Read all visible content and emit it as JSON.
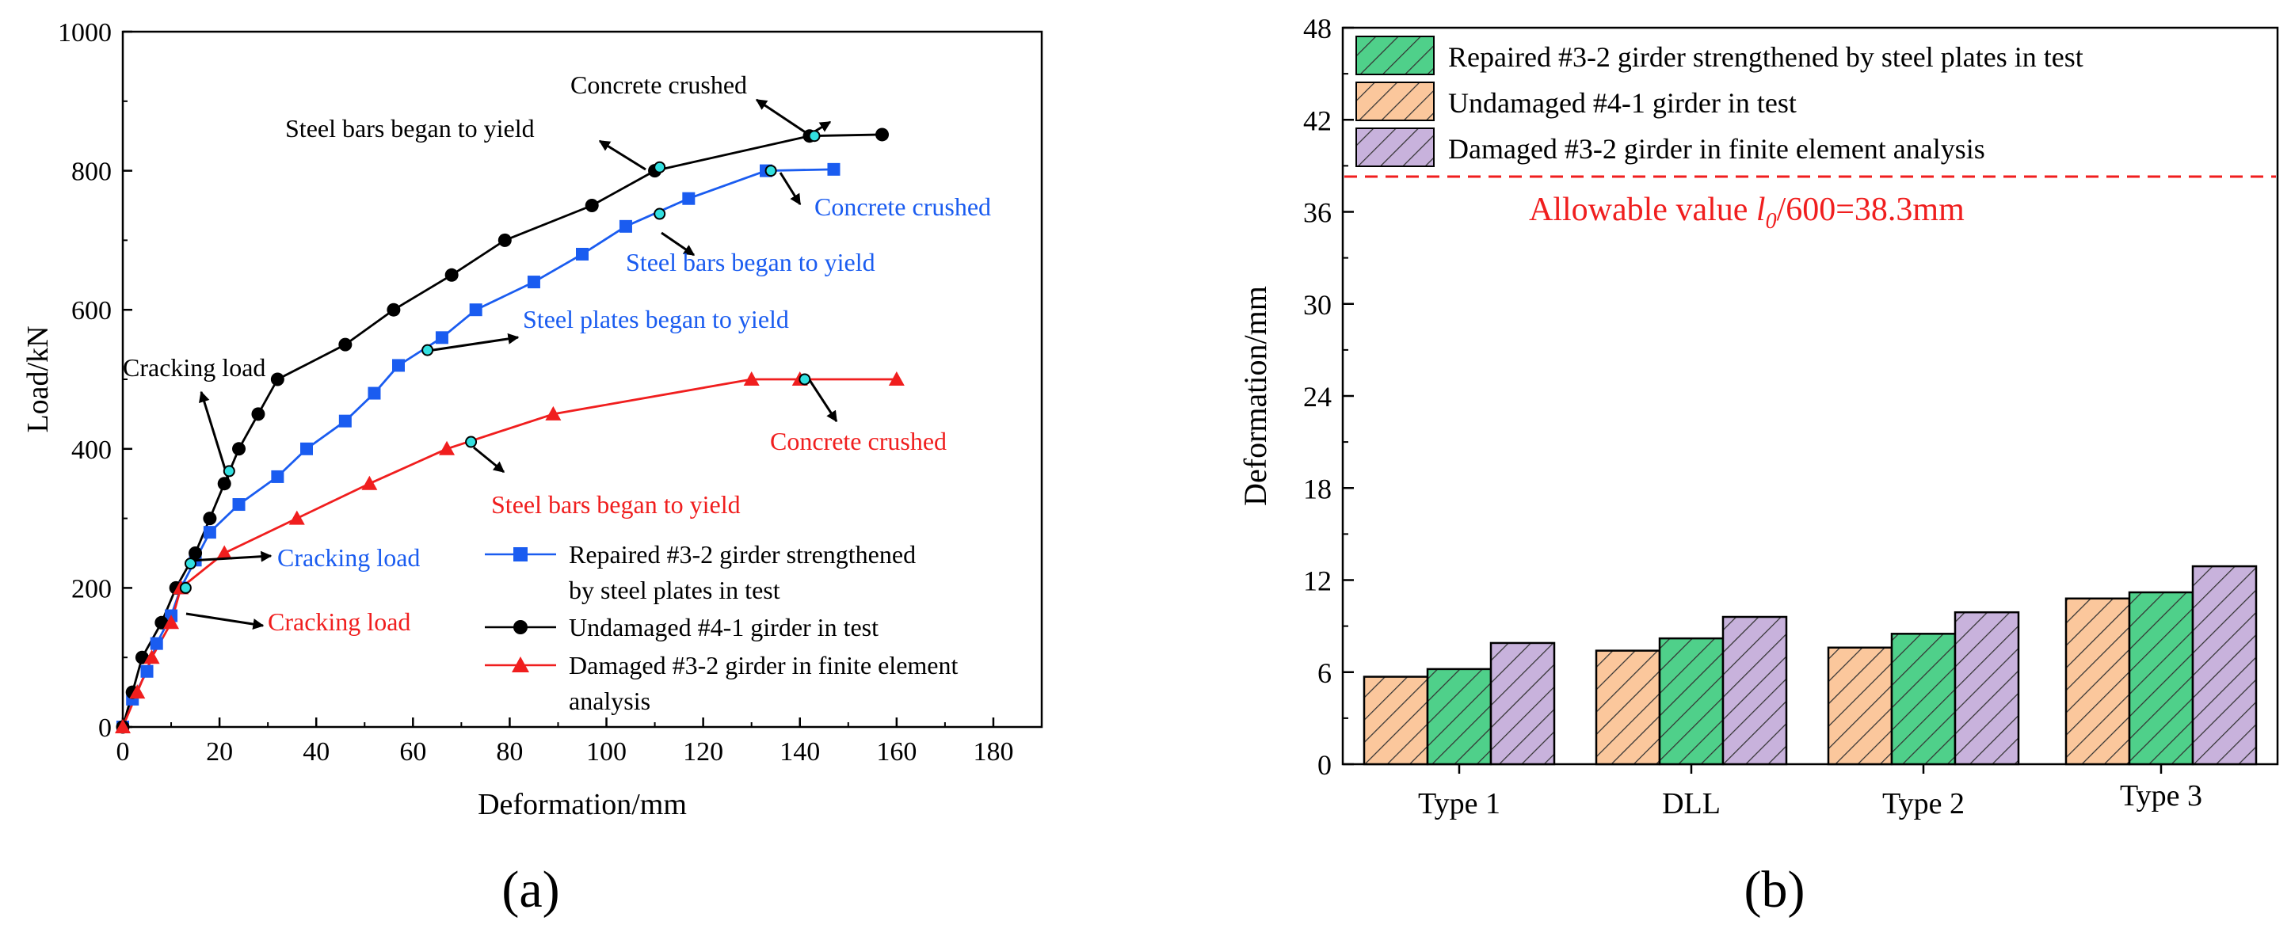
{
  "colors": {
    "black": "#000000",
    "blue": "#1a5cf0",
    "red": "#f01e1e",
    "cyan": "#33e0e0",
    "bar_orange": "#fbc79c",
    "bar_green": "#4fd08a",
    "bar_purple": "#c8b2dc"
  },
  "chart_data": [
    {
      "type": "line",
      "panel_label": "(a)",
      "title": "",
      "xlabel": "Deformation/mm",
      "ylabel": "Load/kN",
      "xlim": [
        0,
        190
      ],
      "ylim": [
        0,
        1000
      ],
      "xticks": [
        "0",
        "20",
        "40",
        "60",
        "80",
        "100",
        "120",
        "140",
        "160",
        "180"
      ],
      "yticks": [
        "0",
        "200",
        "400",
        "600",
        "800",
        "1000"
      ],
      "series": [
        {
          "name": "Repaired #3-2 girder strengthened by steel plates in test",
          "legend_lines": [
            "Repaired #3-2 girder strengthened",
            "by steel plates in test"
          ],
          "color": "blue",
          "marker": "square",
          "x": [
            0,
            2,
            5,
            7,
            10,
            12,
            15,
            18,
            24,
            32,
            38,
            46,
            52,
            57,
            66,
            73,
            85,
            95,
            104,
            117,
            133,
            147
          ],
          "y": [
            0,
            40,
            80,
            120,
            160,
            200,
            240,
            280,
            320,
            360,
            400,
            440,
            480,
            520,
            560,
            600,
            640,
            680,
            720,
            760,
            800,
            802
          ]
        },
        {
          "name": "Undamaged #4-1 girder in test",
          "legend_lines": [
            "Undamaged #4-1 girder in test"
          ],
          "color": "black",
          "marker": "circle",
          "x": [
            0,
            2,
            4,
            8,
            11,
            15,
            18,
            21,
            24,
            28,
            32,
            46,
            56,
            68,
            79,
            97,
            110,
            142,
            157
          ],
          "y": [
            0,
            50,
            100,
            150,
            200,
            250,
            300,
            350,
            400,
            450,
            500,
            550,
            600,
            650,
            700,
            750,
            800,
            850,
            852
          ]
        },
        {
          "name": "Damaged #3-2 girder in finite element analysis",
          "legend_lines": [
            "Damaged #3-2 girder in finite element",
            "analysis"
          ],
          "color": "red",
          "marker": "triangle",
          "x": [
            0,
            3,
            6,
            10,
            12,
            21,
            36,
            51,
            67,
            89,
            130,
            140,
            160
          ],
          "y": [
            0,
            50,
            100,
            150,
            200,
            250,
            300,
            350,
            400,
            450,
            500,
            500,
            500
          ]
        }
      ],
      "key_points": [
        {
          "x": 22,
          "y": 368
        },
        {
          "x": 143,
          "y": 850
        },
        {
          "x": 111,
          "y": 805
        },
        {
          "x": 14,
          "y": 235
        },
        {
          "x": 13,
          "y": 200
        },
        {
          "x": 134,
          "y": 800
        },
        {
          "x": 111,
          "y": 738
        },
        {
          "x": 63,
          "y": 542
        },
        {
          "x": 141,
          "y": 500
        },
        {
          "x": 72,
          "y": 410
        }
      ],
      "annotations": [
        {
          "text": "Concrete crushed",
          "color": "black"
        },
        {
          "text": "Steel bars began to yield",
          "color": "black"
        },
        {
          "text": "Cracking load",
          "color": "black"
        },
        {
          "text": "Concrete crushed",
          "color": "blue"
        },
        {
          "text": "Steel bars began to yield",
          "color": "blue"
        },
        {
          "text": "Steel plates began to yield",
          "color": "blue"
        },
        {
          "text": "Cracking load",
          "color": "blue"
        },
        {
          "text": "Concrete crushed",
          "color": "red"
        },
        {
          "text": "Steel bars began to yield",
          "color": "red"
        },
        {
          "text": "Cracking load",
          "color": "red"
        }
      ]
    },
    {
      "type": "bar",
      "panel_label": "(b)",
      "title": "",
      "xlabel": "",
      "ylabel": "Deformation/mm",
      "ylim": [
        0,
        48
      ],
      "yticks": [
        "0",
        "6",
        "12",
        "18",
        "24",
        "30",
        "36",
        "42",
        "48"
      ],
      "categories": [
        "Type 1",
        "DLL",
        "Type 2",
        "Type 3"
      ],
      "series": [
        {
          "name": "Undamaged #4-1 girder in test",
          "fill": "bar_orange",
          "values": [
            5.7,
            7.4,
            7.6,
            10.8
          ]
        },
        {
          "name": "Repaired #3-2 girder strengthened by steel plates in test",
          "fill": "bar_green",
          "values": [
            6.2,
            8.2,
            8.5,
            11.2
          ]
        },
        {
          "name": "Damaged #3-2 girder in finite element analysis",
          "fill": "bar_purple",
          "values": [
            7.9,
            9.6,
            9.9,
            12.9
          ]
        }
      ],
      "legend_order": [
        1,
        0,
        2
      ],
      "reference_line": {
        "value": 38.3,
        "color": "red",
        "label_prefix": "Allowable value  ",
        "label_symbol": "l",
        "label_subscript": "0",
        "label_suffix": "/600=38.3mm"
      }
    }
  ]
}
